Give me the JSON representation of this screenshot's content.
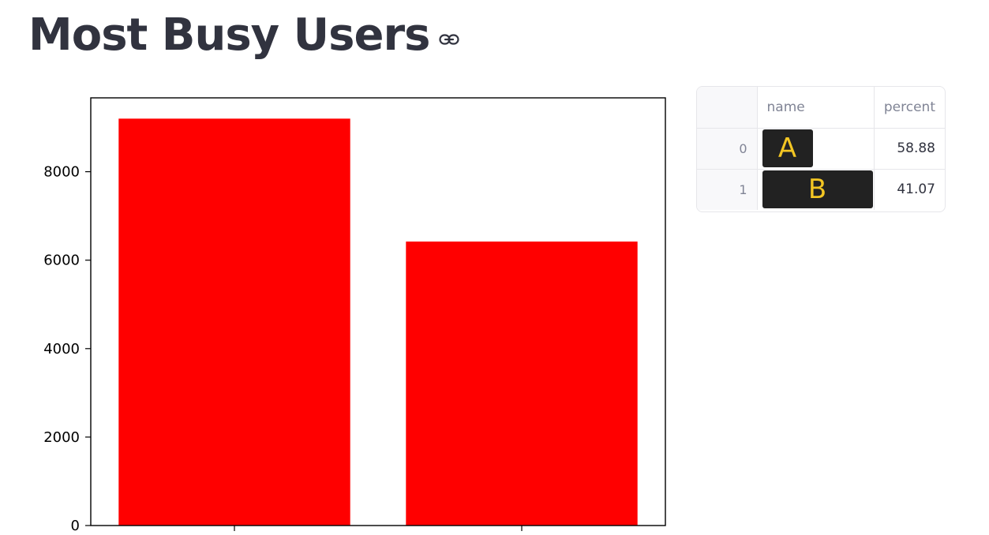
{
  "page": {
    "title": "Most Busy Users",
    "anchor_icon": "link-icon"
  },
  "chart_data": {
    "type": "bar",
    "categories": [
      "",
      ""
    ],
    "values": [
      9200,
      6420
    ],
    "title": "",
    "xlabel": "",
    "ylabel": "",
    "ylim": [
      0,
      9670
    ],
    "yticks": [
      0,
      2000,
      4000,
      6000,
      8000
    ],
    "grid": false,
    "bar_color": "#ff0000"
  },
  "table": {
    "columns": [
      "",
      "name",
      "percent"
    ],
    "rows": [
      {
        "index": "0",
        "name_redaction_label": "A",
        "percent": "58.88"
      },
      {
        "index": "1",
        "name_redaction_label": "B",
        "percent": "41.07"
      }
    ]
  },
  "colors": {
    "title": "#31333F",
    "muted": "#808495",
    "border": "#e6e6ea",
    "redaction": "#222222",
    "redaction_label": "#f3c623"
  }
}
